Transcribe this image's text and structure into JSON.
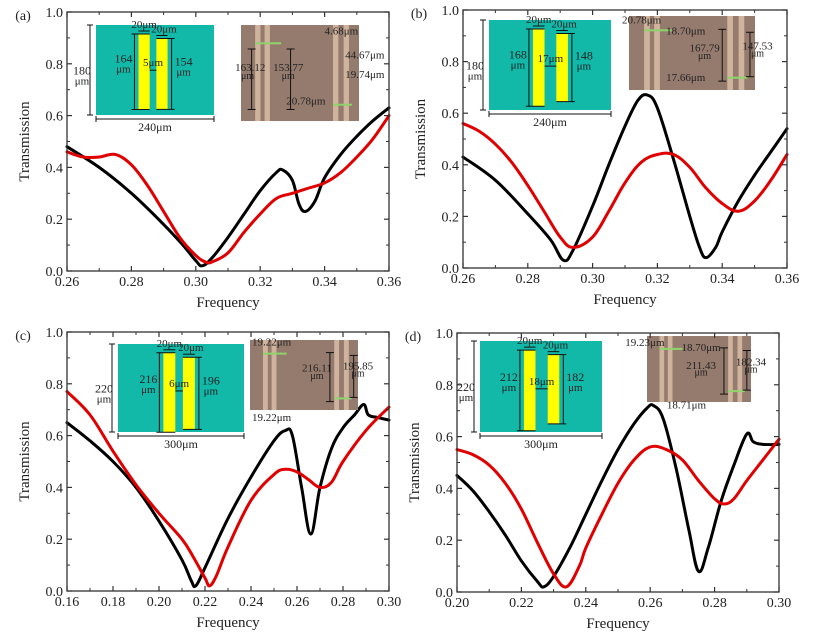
{
  "chart_data": [
    {
      "type": "line",
      "panel_label": "(a)",
      "xlabel": "Frequency",
      "ylabel": "Transmission",
      "xlim": [
        0.26,
        0.36
      ],
      "ylim": [
        0.0,
        1.0
      ],
      "xticks": [
        "0.26",
        "0.28",
        "0.30",
        "0.32",
        "0.34",
        "0.36"
      ],
      "yticks": [
        "0.0",
        "0.2",
        "0.4",
        "0.6",
        "0.8",
        "1.0"
      ],
      "grid": false,
      "series": [
        {
          "name": "black-curve",
          "color": "#000000",
          "x": [
            0.26,
            0.27,
            0.28,
            0.29,
            0.296,
            0.3,
            0.302,
            0.305,
            0.31,
            0.315,
            0.32,
            0.325,
            0.327,
            0.33,
            0.332,
            0.334,
            0.337,
            0.34,
            0.345,
            0.35,
            0.355,
            0.36
          ],
          "y": [
            0.48,
            0.4,
            0.3,
            0.18,
            0.1,
            0.04,
            0.02,
            0.05,
            0.13,
            0.22,
            0.31,
            0.38,
            0.39,
            0.35,
            0.26,
            0.23,
            0.27,
            0.36,
            0.45,
            0.52,
            0.58,
            0.63
          ]
        },
        {
          "name": "red-curve",
          "color": "#e00000",
          "x": [
            0.26,
            0.265,
            0.27,
            0.275,
            0.28,
            0.285,
            0.29,
            0.295,
            0.3,
            0.303,
            0.305,
            0.31,
            0.315,
            0.32,
            0.325,
            0.33,
            0.335,
            0.34,
            0.345,
            0.35,
            0.355,
            0.36
          ],
          "y": [
            0.46,
            0.44,
            0.44,
            0.45,
            0.41,
            0.33,
            0.23,
            0.13,
            0.06,
            0.035,
            0.035,
            0.07,
            0.15,
            0.22,
            0.28,
            0.3,
            0.32,
            0.34,
            0.38,
            0.44,
            0.51,
            0.6
          ]
        }
      ],
      "inset_design": {
        "cell_width": "240μm",
        "cell_height_value": "180",
        "cell_height_unit": "μm",
        "bar_width_left": "20μm",
        "bar_width_right": "20μm",
        "bar_length_left_value": "164",
        "bar_length_right_value": "154",
        "length_unit": "μm",
        "gap": "5μm"
      },
      "inset_micrograph": {
        "labels": [
          "163.12",
          "μm",
          "153.77",
          "μm",
          "4.68μm",
          "44.67μm",
          "19.74μm",
          "20.78μm"
        ]
      }
    },
    {
      "type": "line",
      "panel_label": "(b)",
      "xlabel": "Frequency",
      "ylabel": "Transmission",
      "xlim": [
        0.26,
        0.36
      ],
      "ylim": [
        0.0,
        1.0
      ],
      "xticks": [
        "0.26",
        "0.28",
        "0.30",
        "0.32",
        "0.34",
        "0.36"
      ],
      "yticks": [
        "0.0",
        "0.2",
        "0.4",
        "0.6",
        "0.8",
        "1.0"
      ],
      "grid": false,
      "series": [
        {
          "name": "black-curve",
          "color": "#000000",
          "x": [
            0.26,
            0.27,
            0.28,
            0.287,
            0.291,
            0.294,
            0.3,
            0.305,
            0.31,
            0.314,
            0.317,
            0.32,
            0.325,
            0.33,
            0.333,
            0.335,
            0.338,
            0.34,
            0.345,
            0.35,
            0.355,
            0.36
          ],
          "y": [
            0.43,
            0.34,
            0.21,
            0.11,
            0.03,
            0.07,
            0.24,
            0.4,
            0.55,
            0.65,
            0.67,
            0.62,
            0.42,
            0.2,
            0.08,
            0.04,
            0.08,
            0.14,
            0.26,
            0.36,
            0.45,
            0.54
          ]
        },
        {
          "name": "red-curve",
          "color": "#e00000",
          "x": [
            0.26,
            0.265,
            0.27,
            0.275,
            0.28,
            0.285,
            0.29,
            0.294,
            0.3,
            0.305,
            0.31,
            0.315,
            0.32,
            0.325,
            0.33,
            0.335,
            0.34,
            0.345,
            0.35,
            0.355,
            0.36
          ],
          "y": [
            0.56,
            0.53,
            0.48,
            0.41,
            0.32,
            0.22,
            0.12,
            0.08,
            0.12,
            0.22,
            0.33,
            0.41,
            0.44,
            0.44,
            0.39,
            0.31,
            0.25,
            0.22,
            0.26,
            0.34,
            0.44
          ]
        }
      ],
      "inset_design": {
        "cell_width": "240μm",
        "cell_height_value": "180",
        "cell_height_unit": "μm",
        "bar_width_left": "20μm",
        "bar_width_right": "20μm",
        "bar_length_left_value": "168",
        "bar_length_right_value": "148",
        "length_unit": "μm",
        "gap": "17μm"
      },
      "inset_micrograph": {
        "labels": [
          "20.78μm",
          "18.70μm",
          "167.79",
          "μm",
          "147.53",
          "μm",
          "17.66μm"
        ]
      }
    },
    {
      "type": "line",
      "panel_label": "(c)",
      "xlabel": "Frequency",
      "ylabel": "Transmission",
      "xlim": [
        0.16,
        0.3
      ],
      "ylim": [
        0.0,
        1.0
      ],
      "xticks": [
        "0.16",
        "0.18",
        "0.20",
        "0.22",
        "0.24",
        "0.26",
        "0.28",
        "0.30"
      ],
      "yticks": [
        "0.0",
        "0.2",
        "0.4",
        "0.6",
        "0.8",
        "1.0"
      ],
      "grid": false,
      "series": [
        {
          "name": "black-curve",
          "color": "#000000",
          "x": [
            0.16,
            0.17,
            0.18,
            0.19,
            0.2,
            0.21,
            0.214,
            0.216,
            0.22,
            0.23,
            0.24,
            0.25,
            0.255,
            0.258,
            0.262,
            0.266,
            0.27,
            0.275,
            0.28,
            0.285,
            0.289,
            0.291,
            0.295,
            0.3
          ],
          "y": [
            0.65,
            0.58,
            0.5,
            0.4,
            0.27,
            0.12,
            0.04,
            0.02,
            0.09,
            0.28,
            0.44,
            0.58,
            0.62,
            0.6,
            0.4,
            0.22,
            0.4,
            0.55,
            0.63,
            0.68,
            0.72,
            0.68,
            0.67,
            0.66
          ]
        },
        {
          "name": "red-curve",
          "color": "#e00000",
          "x": [
            0.16,
            0.17,
            0.18,
            0.19,
            0.2,
            0.21,
            0.215,
            0.22,
            0.222,
            0.225,
            0.23,
            0.24,
            0.25,
            0.255,
            0.26,
            0.265,
            0.27,
            0.275,
            0.28,
            0.29,
            0.3
          ],
          "y": [
            0.77,
            0.68,
            0.54,
            0.41,
            0.3,
            0.2,
            0.13,
            0.05,
            0.02,
            0.06,
            0.17,
            0.35,
            0.45,
            0.47,
            0.46,
            0.43,
            0.4,
            0.42,
            0.5,
            0.62,
            0.71
          ]
        }
      ],
      "inset_design": {
        "cell_width": "300μm",
        "cell_height_value": "220",
        "cell_height_unit": "μm",
        "bar_width_left": "20μm",
        "bar_width_right": "20μm",
        "bar_length_left_value": "216",
        "bar_length_right_value": "196",
        "length_unit": "μm",
        "gap": "6μm"
      },
      "inset_micrograph": {
        "labels": [
          "19.22μm",
          "216.11",
          "μm",
          "195.85",
          "μm",
          "19.22μm"
        ]
      }
    },
    {
      "type": "line",
      "panel_label": "(d)",
      "xlabel": "Frequency",
      "ylabel": "Transmission",
      "xlim": [
        0.2,
        0.3
      ],
      "ylim": [
        0.0,
        1.0
      ],
      "xticks": [
        "0.20",
        "0.22",
        "0.24",
        "0.26",
        "0.28",
        "0.30"
      ],
      "yticks": [
        "0.0",
        "0.2",
        "0.4",
        "0.6",
        "0.8",
        "1.0"
      ],
      "grid": false,
      "series": [
        {
          "name": "black-curve",
          "color": "#000000",
          "x": [
            0.2,
            0.205,
            0.21,
            0.215,
            0.22,
            0.225,
            0.227,
            0.23,
            0.235,
            0.24,
            0.245,
            0.25,
            0.255,
            0.259,
            0.261,
            0.264,
            0.268,
            0.272,
            0.275,
            0.278,
            0.282,
            0.286,
            0.29,
            0.292,
            0.295,
            0.3
          ],
          "y": [
            0.45,
            0.39,
            0.31,
            0.22,
            0.12,
            0.04,
            0.02,
            0.06,
            0.17,
            0.3,
            0.43,
            0.55,
            0.65,
            0.71,
            0.72,
            0.67,
            0.48,
            0.24,
            0.08,
            0.17,
            0.35,
            0.49,
            0.61,
            0.58,
            0.57,
            0.57
          ]
        },
        {
          "name": "red-curve",
          "color": "#e00000",
          "x": [
            0.2,
            0.205,
            0.21,
            0.215,
            0.22,
            0.225,
            0.23,
            0.234,
            0.238,
            0.24,
            0.245,
            0.25,
            0.255,
            0.26,
            0.265,
            0.27,
            0.275,
            0.28,
            0.283,
            0.286,
            0.29,
            0.295,
            0.3
          ],
          "y": [
            0.55,
            0.53,
            0.49,
            0.42,
            0.32,
            0.19,
            0.07,
            0.02,
            0.1,
            0.17,
            0.3,
            0.42,
            0.51,
            0.56,
            0.55,
            0.51,
            0.43,
            0.36,
            0.34,
            0.36,
            0.43,
            0.51,
            0.59
          ]
        }
      ],
      "inset_design": {
        "cell_width": "300μm",
        "cell_height_value": "220",
        "cell_height_unit": "μm",
        "bar_width_left": "20μm",
        "bar_width_right": "20μm",
        "bar_length_left_value": "212",
        "bar_length_right_value": "182",
        "length_unit": "μm",
        "gap": "18μm"
      },
      "inset_micrograph": {
        "labels": [
          "19.23μm",
          "18.70μm",
          "211.43",
          "μm",
          "182.34",
          "μm",
          "18.71μm"
        ]
      }
    }
  ],
  "colors": {
    "design_background": "#12b8a8",
    "resonator_bar": "#ffff00",
    "micrograph_background": "#957b6e",
    "micrograph_strip": "#d9bda4",
    "micrograph_marker": "#8fd46a"
  }
}
